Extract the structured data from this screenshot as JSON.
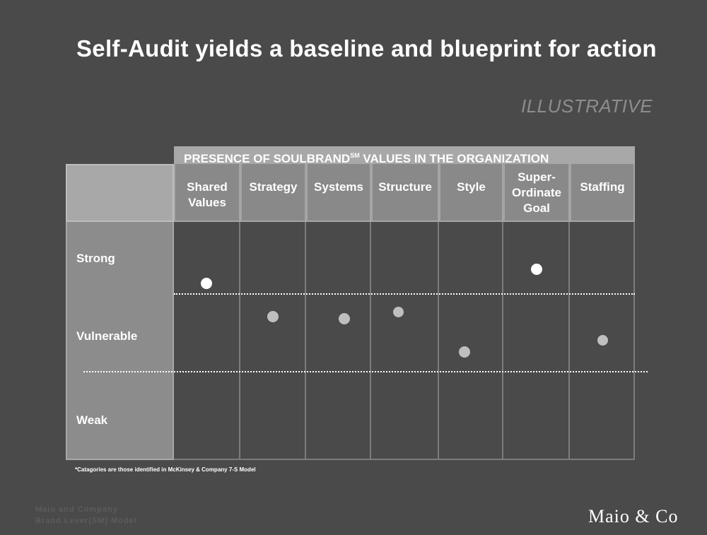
{
  "title": "Self-Audit yields a baseline and blueprint for action",
  "tag": "ILLUSTRATIVE",
  "banner": {
    "text": "PRESENCE OF SOULBRAND",
    "sup": "SM",
    "rest": " VALUES IN THE ORGANIZATION"
  },
  "columns": [
    "Shared Values",
    "Strategy",
    "Systems",
    "Structure",
    "Style",
    "Super-Ordinate Goal",
    "Staffing"
  ],
  "rows": [
    "Strong",
    "Vulnerable",
    "Weak"
  ],
  "chart_data": {
    "type": "scatter",
    "categories": [
      "Shared Values",
      "Strategy",
      "Systems",
      "Structure",
      "Style",
      "Super-Ordinate Goal",
      "Staffing"
    ],
    "bands": [
      "Strong",
      "Vulnerable",
      "Weak"
    ],
    "values": [
      0.74,
      0.6,
      0.59,
      0.62,
      0.45,
      0.8,
      0.5
    ]
  },
  "footnote": "*Catagories are those identified in McKinsey & Company 7-S Model",
  "watermark": {
    "line1": "Maio and Company",
    "line2": "Brand Lever(SM) Model"
  },
  "logo": "Maio & Co"
}
